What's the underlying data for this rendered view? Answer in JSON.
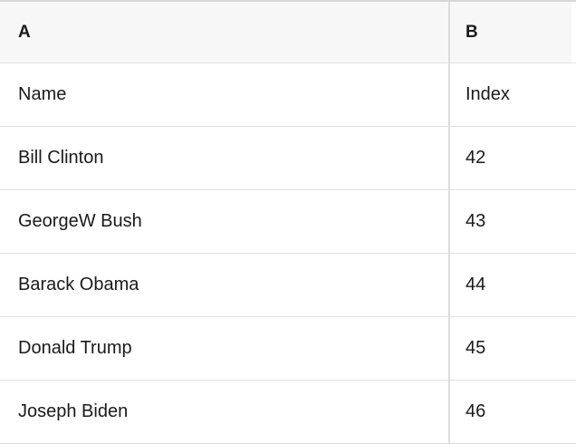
{
  "table": {
    "column_headers": [
      "A",
      "B"
    ],
    "rows": [
      {
        "a": "Name",
        "b": "Index"
      },
      {
        "a": "Bill Clinton",
        "b": "42"
      },
      {
        "a": "GeorgeW Bush",
        "b": "43"
      },
      {
        "a": "Barack Obama",
        "b": "44"
      },
      {
        "a": "Donald Trump",
        "b": "45"
      },
      {
        "a": "Joseph Biden",
        "b": "46"
      }
    ]
  },
  "colors": {
    "header_background": "#f7f7f7",
    "cell_background": "#ffffff",
    "grid_border": "#e1e1e1",
    "column_divider": "#dcdcdc",
    "top_border": "#d7d7d7",
    "text": "#1a1a1a"
  }
}
